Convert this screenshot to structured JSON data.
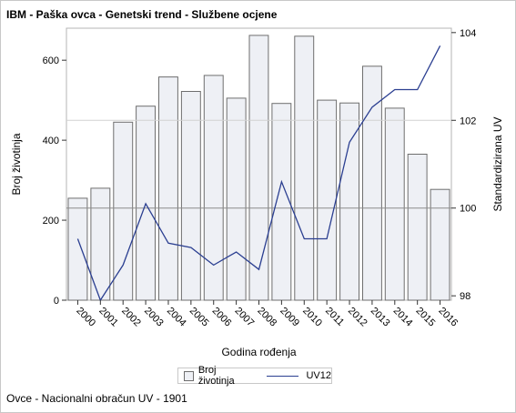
{
  "title": "IBM - Paška ovca - Genetski trend - Službene ocjene",
  "footnote": "Ovce - Nacionalni obračun UV - 1901",
  "colors": {
    "bar_fill": "#eef0f5",
    "bar_stroke": "#6e6e6e",
    "line": "#2b3f91",
    "ref_line": "#a0a0a0",
    "frame": "#c8c8c8"
  },
  "chart_data": {
    "type": "bar",
    "xlabel": "Godina rođenja",
    "ylabel_left": "Broj životinja",
    "ylabel_right": "Standardizirana UV",
    "categories": [
      "2000",
      "2001",
      "2002",
      "2003",
      "2004",
      "2005",
      "2006",
      "2007",
      "2008",
      "2009",
      "2010",
      "2011",
      "2012",
      "2013",
      "2014",
      "2015",
      "2016"
    ],
    "series": [
      {
        "name": "Broj životinja",
        "axis": "left",
        "kind": "bar",
        "values": [
          255,
          280,
          445,
          485,
          558,
          522,
          562,
          505,
          662,
          492,
          660,
          500,
          493,
          585,
          480,
          365,
          277
        ]
      },
      {
        "name": "UV12",
        "axis": "right",
        "kind": "line",
        "values": [
          99.3,
          97.9,
          98.7,
          100.1,
          99.2,
          99.1,
          98.7,
          99.0,
          98.6,
          100.6,
          99.3,
          99.3,
          101.5,
          102.3,
          102.7,
          102.7,
          103.7
        ]
      }
    ],
    "ylim_left": [
      0,
      680
    ],
    "yticks_left": [
      0,
      200,
      400,
      600
    ],
    "ylim_right": [
      97.9,
      104.1
    ],
    "yticks_right": [
      98,
      100,
      102,
      104
    ],
    "reference_lines_right": [
      100,
      102
    ],
    "grid": false,
    "legend_position": "bottom"
  }
}
